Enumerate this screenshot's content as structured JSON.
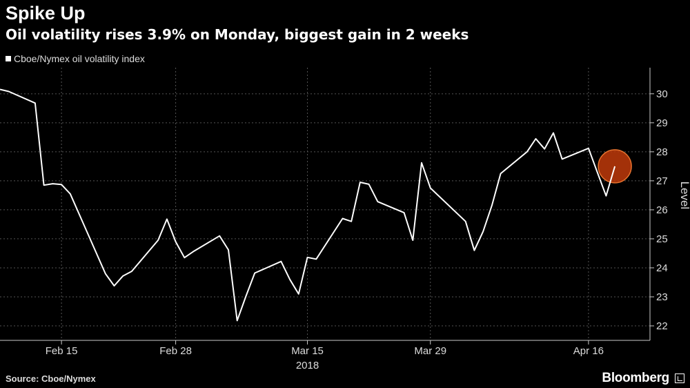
{
  "header": {
    "title": "Spike Up",
    "subtitle": "Oil volatility rises 3.9% on Monday, biggest gain in 2 weeks"
  },
  "footer": {
    "source": "Source: Cboe/Nymex",
    "brand": "Bloomberg"
  },
  "chart_data": {
    "type": "line",
    "xlabel": "2018",
    "ylabel": "Level",
    "ylim": [
      21.5,
      30.9
    ],
    "yticks": [
      22,
      23,
      24,
      25,
      26,
      27,
      28,
      29,
      30
    ],
    "xticks": [
      {
        "label": "Feb 15",
        "date": "2018-02-15"
      },
      {
        "label": "Feb 28",
        "date": "2018-02-28"
      },
      {
        "label": "Mar 15",
        "date": "2018-03-15"
      },
      {
        "label": "Mar 29",
        "date": "2018-03-29"
      },
      {
        "label": "Apr 16",
        "date": "2018-04-16"
      }
    ],
    "grid": true,
    "legend_position": "top-left",
    "color": "#ffffff",
    "highlight_color": "#c0390b",
    "series": [
      {
        "name": "Cboe/Nymex oil volatility index",
        "points": [
          [
            "2018-02-08",
            30.15
          ],
          [
            "2018-02-09",
            30.08
          ],
          [
            "2018-02-12",
            29.68
          ],
          [
            "2018-02-13",
            26.85
          ],
          [
            "2018-02-14",
            26.9
          ],
          [
            "2018-02-15",
            26.87
          ],
          [
            "2018-02-16",
            26.55
          ],
          [
            "2018-02-20",
            23.8
          ],
          [
            "2018-02-21",
            23.38
          ],
          [
            "2018-02-22",
            23.72
          ],
          [
            "2018-02-23",
            23.88
          ],
          [
            "2018-02-26",
            24.95
          ],
          [
            "2018-02-27",
            25.68
          ],
          [
            "2018-02-28",
            24.9
          ],
          [
            "2018-03-01",
            24.35
          ],
          [
            "2018-03-02",
            24.56
          ],
          [
            "2018-03-05",
            25.1
          ],
          [
            "2018-03-06",
            24.62
          ],
          [
            "2018-03-07",
            22.18
          ],
          [
            "2018-03-08",
            23.02
          ],
          [
            "2018-03-09",
            23.82
          ],
          [
            "2018-03-12",
            24.22
          ],
          [
            "2018-03-13",
            23.6
          ],
          [
            "2018-03-14",
            23.1
          ],
          [
            "2018-03-15",
            24.36
          ],
          [
            "2018-03-16",
            24.3
          ],
          [
            "2018-03-19",
            25.7
          ],
          [
            "2018-03-20",
            25.6
          ],
          [
            "2018-03-21",
            26.95
          ],
          [
            "2018-03-22",
            26.88
          ],
          [
            "2018-03-23",
            26.28
          ],
          [
            "2018-03-26",
            25.9
          ],
          [
            "2018-03-27",
            24.95
          ],
          [
            "2018-03-28",
            27.62
          ],
          [
            "2018-03-29",
            26.75
          ],
          [
            "2018-04-02",
            25.6
          ],
          [
            "2018-04-03",
            24.6
          ],
          [
            "2018-04-04",
            25.25
          ],
          [
            "2018-04-05",
            26.15
          ],
          [
            "2018-04-06",
            27.25
          ],
          [
            "2018-04-09",
            28.0
          ],
          [
            "2018-04-10",
            28.45
          ],
          [
            "2018-04-11",
            28.1
          ],
          [
            "2018-04-12",
            28.65
          ],
          [
            "2018-04-13",
            27.75
          ],
          [
            "2018-04-16",
            28.12
          ],
          [
            "2018-04-17",
            27.3
          ],
          [
            "2018-04-18",
            26.48
          ],
          [
            "2018-04-19",
            27.5
          ]
        ]
      }
    ]
  }
}
